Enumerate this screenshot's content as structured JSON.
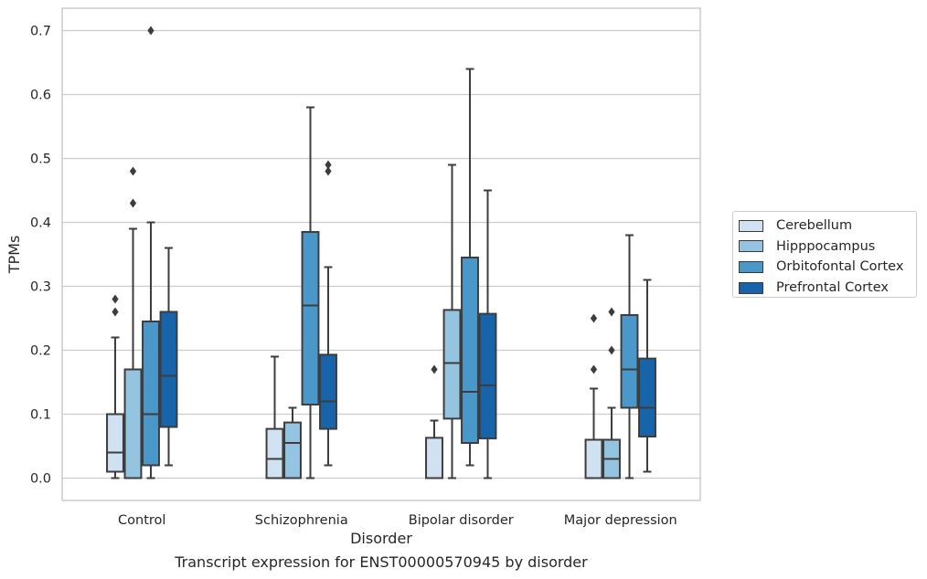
{
  "caption": "Transcript expression for ENST00000570945 by disorder",
  "chart_data": {
    "type": "box",
    "title": "",
    "xlabel": "Disorder",
    "ylabel": "TPMs",
    "ylim": [
      -0.035,
      0.735
    ],
    "yticks": [
      "0.0",
      "0.1",
      "0.2",
      "0.3",
      "0.4",
      "0.5",
      "0.6",
      "0.7"
    ],
    "grid": "horizontal",
    "legend_position": "right",
    "categories": [
      "Control",
      "Schizophrenia",
      "Bipolar disorder",
      "Major depression"
    ],
    "series": [
      {
        "name": "Cerebellum",
        "color": "#d0e1f2",
        "boxes": [
          {
            "whislo": 0.0,
            "q1": 0.01,
            "med": 0.04,
            "q3": 0.1,
            "whishi": 0.22,
            "fliers": [
              0.26,
              0.28
            ]
          },
          {
            "whislo": 0.0,
            "q1": 0.0,
            "med": 0.03,
            "q3": 0.077,
            "whishi": 0.19,
            "fliers": []
          },
          {
            "whislo": 0.0,
            "q1": 0.0,
            "med": 0.0,
            "q3": 0.063,
            "whishi": 0.09,
            "fliers": [
              0.17
            ]
          },
          {
            "whislo": 0.0,
            "q1": 0.0,
            "med": 0.0,
            "q3": 0.06,
            "whishi": 0.14,
            "fliers": [
              0.17,
              0.25
            ]
          }
        ]
      },
      {
        "name": "Hipppocampus",
        "color": "#94c4df",
        "boxes": [
          {
            "whislo": 0.0,
            "q1": 0.0,
            "med": 0.0,
            "q3": 0.17,
            "whishi": 0.39,
            "fliers": [
              0.43,
              0.48
            ]
          },
          {
            "whislo": 0.0,
            "q1": 0.0,
            "med": 0.055,
            "q3": 0.087,
            "whishi": 0.11,
            "fliers": []
          },
          {
            "whislo": 0.0,
            "q1": 0.093,
            "med": 0.18,
            "q3": 0.263,
            "whishi": 0.49,
            "fliers": []
          },
          {
            "whislo": 0.0,
            "q1": 0.0,
            "med": 0.03,
            "q3": 0.06,
            "whishi": 0.11,
            "fliers": [
              0.2,
              0.26
            ]
          }
        ]
      },
      {
        "name": "Orbitofontal Cortex",
        "color": "#4a98c9",
        "boxes": [
          {
            "whislo": 0.0,
            "q1": 0.02,
            "med": 0.1,
            "q3": 0.245,
            "whishi": 0.4,
            "fliers": [
              0.7
            ]
          },
          {
            "whislo": 0.0,
            "q1": 0.115,
            "med": 0.27,
            "q3": 0.385,
            "whishi": 0.58,
            "fliers": []
          },
          {
            "whislo": 0.02,
            "q1": 0.055,
            "med": 0.135,
            "q3": 0.345,
            "whishi": 0.64,
            "fliers": []
          },
          {
            "whislo": 0.0,
            "q1": 0.11,
            "med": 0.17,
            "q3": 0.255,
            "whishi": 0.38,
            "fliers": []
          }
        ]
      },
      {
        "name": "Prefrontal Cortex",
        "color": "#1764ab",
        "boxes": [
          {
            "whislo": 0.02,
            "q1": 0.08,
            "med": 0.16,
            "q3": 0.26,
            "whishi": 0.36,
            "fliers": []
          },
          {
            "whislo": 0.02,
            "q1": 0.077,
            "med": 0.12,
            "q3": 0.193,
            "whishi": 0.33,
            "fliers": [
              0.48,
              0.49
            ]
          },
          {
            "whislo": 0.0,
            "q1": 0.062,
            "med": 0.145,
            "q3": 0.257,
            "whishi": 0.45,
            "fliers": []
          },
          {
            "whislo": 0.01,
            "q1": 0.065,
            "med": 0.11,
            "q3": 0.187,
            "whishi": 0.31,
            "fliers": []
          }
        ]
      }
    ]
  }
}
